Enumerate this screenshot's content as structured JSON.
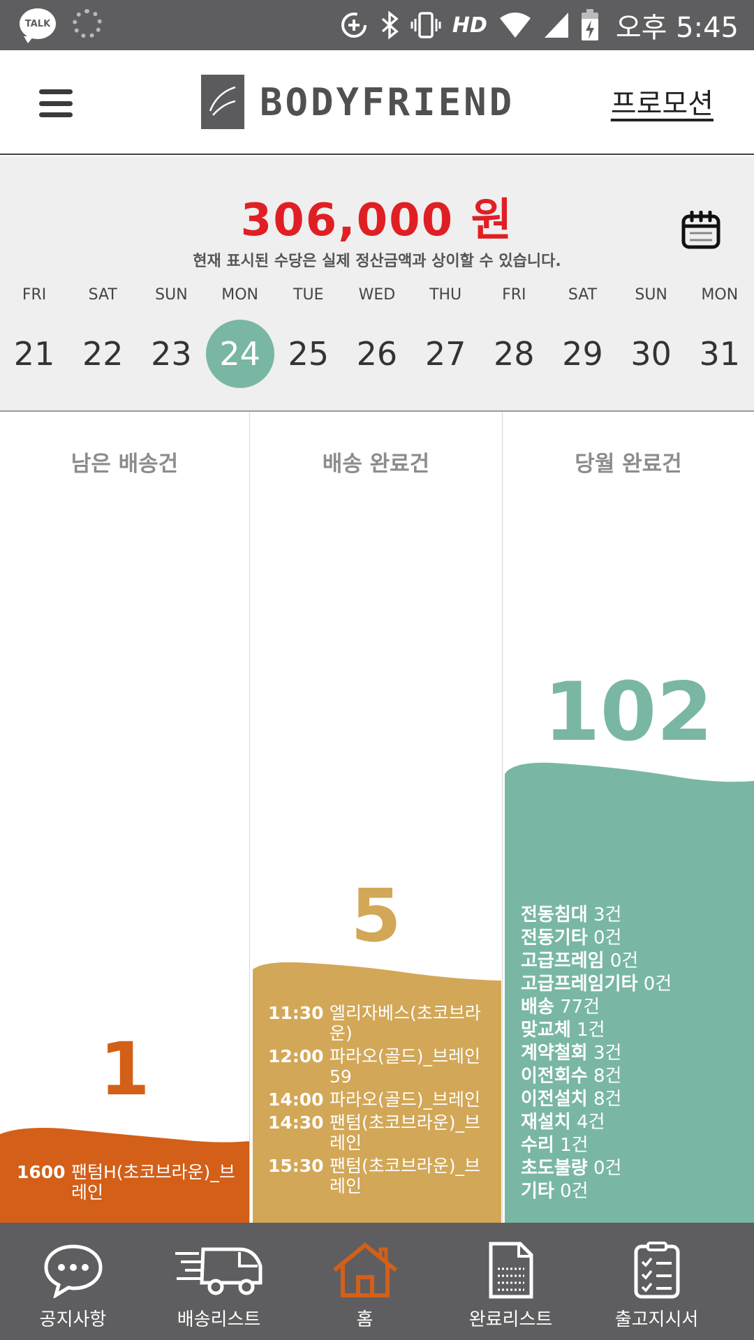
{
  "status_bar": {
    "talk_badge": "TALK",
    "network": "HD",
    "time": "오후 5:45",
    "icons": [
      "kakaotalk-icon",
      "loading-icon",
      "data-saver-icon",
      "bluetooth-icon",
      "vibrate-icon",
      "wifi-icon",
      "signal-icon",
      "battery-charging-icon"
    ]
  },
  "header": {
    "brand": "BODYFRIEND",
    "promo_label": "프로모션",
    "icons": [
      "menu-icon",
      "brand-logo"
    ]
  },
  "summary": {
    "amount": "306,000 원",
    "notice": "현재 표시된 수당은 실제 정산금액과 상이할 수 있습니다.",
    "calendar_icon": "calendar-icon",
    "amount_color": "#e01f24"
  },
  "days": [
    {
      "dow": "FRI",
      "num": "21"
    },
    {
      "dow": "SAT",
      "num": "22"
    },
    {
      "dow": "SUN",
      "num": "23"
    },
    {
      "dow": "MON",
      "num": "24",
      "selected": true
    },
    {
      "dow": "TUE",
      "num": "25"
    },
    {
      "dow": "WED",
      "num": "26"
    },
    {
      "dow": "THU",
      "num": "27"
    },
    {
      "dow": "FRI",
      "num": "28"
    },
    {
      "dow": "SAT",
      "num": "29"
    },
    {
      "dow": "SUN",
      "num": "30"
    },
    {
      "dow": "MON",
      "num": "31"
    }
  ],
  "columns": {
    "remaining": {
      "title": "남은 배송건",
      "count": "1",
      "color": "#d35f18",
      "entries": [
        {
          "time": "1600",
          "label": "팬텀H(초코브라운)_브레인"
        }
      ]
    },
    "delivered": {
      "title": "배송 완료건",
      "count": "5",
      "color": "#d2a757",
      "entries": [
        {
          "time": "11:30",
          "label": "엘리자베스(초코브라운)"
        },
        {
          "time": "12:00",
          "label": "파라오(골드)_브레인59"
        },
        {
          "time": "14:00",
          "label": "파라오(골드)_브레인"
        },
        {
          "time": "14:30",
          "label": "팬텀(초코브라운)_브레인"
        },
        {
          "time": "15:30",
          "label": "팬텀(초코브라운)_브레인"
        }
      ]
    },
    "monthly": {
      "title": "당월 완료건",
      "count": "102",
      "color": "#79b7a4",
      "stats": [
        {
          "name": "전동침대",
          "value": "3건"
        },
        {
          "name": "전동기타",
          "value": "0건"
        },
        {
          "name": "고급프레임",
          "value": "0건"
        },
        {
          "name": "고급프레임기타",
          "value": "0건"
        },
        {
          "name": "배송",
          "value": "77건"
        },
        {
          "name": "맞교체",
          "value": "1건"
        },
        {
          "name": "계약철회",
          "value": "3건"
        },
        {
          "name": "이전회수",
          "value": "8건"
        },
        {
          "name": "이전설치",
          "value": "8건"
        },
        {
          "name": "재설치",
          "value": "4건"
        },
        {
          "name": "수리",
          "value": "1건"
        },
        {
          "name": "초도불량",
          "value": "0건"
        },
        {
          "name": "기타",
          "value": "0건"
        }
      ]
    }
  },
  "bottom_nav": [
    {
      "label": "공지사항",
      "icon": "chat-bubble-icon"
    },
    {
      "label": "배송리스트",
      "icon": "delivery-truck-icon"
    },
    {
      "label": "홈",
      "icon": "home-icon",
      "active": true
    },
    {
      "label": "완료리스트",
      "icon": "document-icon"
    },
    {
      "label": "출고지시서",
      "icon": "checklist-icon"
    }
  ],
  "colors": {
    "statusbar": "#5e5e60",
    "nav_active": "#d35f18",
    "selected_day": "#79b7a4"
  }
}
